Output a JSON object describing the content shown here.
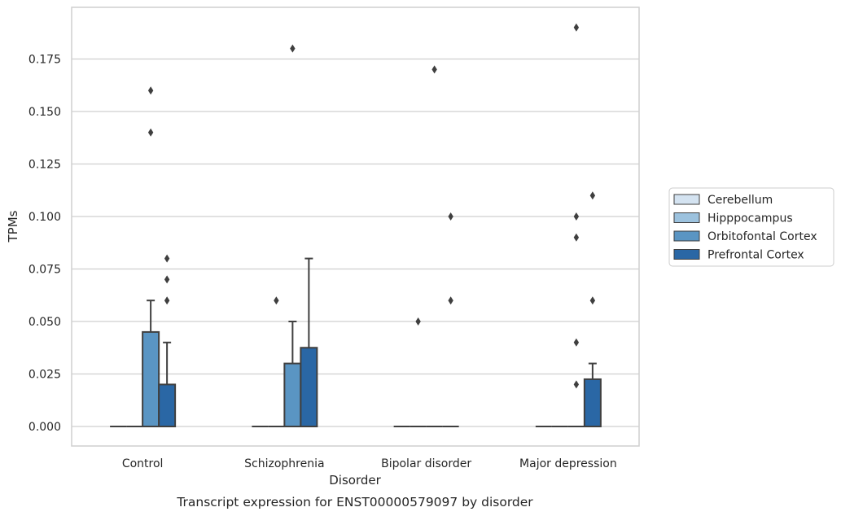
{
  "chart_data": {
    "type": "box",
    "caption": "Transcript expression for ENST00000579097 by disorder",
    "xlabel": "Disorder",
    "ylabel": "TPMs",
    "ylim": [
      -0.009,
      0.199
    ],
    "yticks": [
      "0.000",
      "0.025",
      "0.050",
      "0.075",
      "0.100",
      "0.125",
      "0.150",
      "0.175"
    ],
    "ytick_values": [
      0,
      0.025,
      0.05,
      0.075,
      0.1,
      0.125,
      0.15,
      0.175
    ],
    "categories": [
      "Control",
      "Schizophrenia",
      "Bipolar disorder",
      "Major depression"
    ],
    "grid": "horizontal",
    "legend_position": "right",
    "series": [
      {
        "name": "Cerebellum",
        "color": "#d4e3f1",
        "boxes": [
          {
            "q1": 0,
            "median": 0,
            "q3": 0,
            "whisker_low": 0,
            "whisker_high": 0,
            "outliers": []
          },
          {
            "q1": 0,
            "median": 0,
            "q3": 0,
            "whisker_low": 0,
            "whisker_high": 0,
            "outliers": []
          },
          {
            "q1": 0,
            "median": 0,
            "q3": 0,
            "whisker_low": 0,
            "whisker_high": 0,
            "outliers": []
          },
          {
            "q1": 0,
            "median": 0,
            "q3": 0,
            "whisker_low": 0,
            "whisker_high": 0,
            "outliers": []
          }
        ]
      },
      {
        "name": "Hipppocampus",
        "color": "#9cc2de",
        "boxes": [
          {
            "q1": 0,
            "median": 0,
            "q3": 0,
            "whisker_low": 0,
            "whisker_high": 0,
            "outliers": []
          },
          {
            "q1": 0,
            "median": 0,
            "q3": 0,
            "whisker_low": 0,
            "whisker_high": 0,
            "outliers": [
              0.06
            ]
          },
          {
            "q1": 0,
            "median": 0,
            "q3": 0,
            "whisker_low": 0,
            "whisker_high": 0,
            "outliers": [
              0.05
            ]
          },
          {
            "q1": 0,
            "median": 0,
            "q3": 0,
            "whisker_low": 0,
            "whisker_high": 0,
            "outliers": []
          }
        ]
      },
      {
        "name": "Orbitofontal Cortex",
        "color": "#5a95c3",
        "boxes": [
          {
            "q1": 0,
            "median": 0,
            "q3": 0.045,
            "whisker_low": 0,
            "whisker_high": 0.06,
            "outliers": [
              0.14,
              0.16
            ]
          },
          {
            "q1": 0,
            "median": 0,
            "q3": 0.03,
            "whisker_low": 0,
            "whisker_high": 0.05,
            "outliers": [
              0.18
            ]
          },
          {
            "q1": 0,
            "median": 0,
            "q3": 0,
            "whisker_low": 0,
            "whisker_high": 0,
            "outliers": [
              0.17
            ]
          },
          {
            "q1": 0,
            "median": 0,
            "q3": 0,
            "whisker_low": 0,
            "whisker_high": 0,
            "outliers": [
              0.02,
              0.04,
              0.09,
              0.1,
              0.19
            ]
          }
        ]
      },
      {
        "name": "Prefrontal Cortex",
        "color": "#2a67a5",
        "boxes": [
          {
            "q1": 0,
            "median": 0,
            "q3": 0.02,
            "whisker_low": 0,
            "whisker_high": 0.04,
            "outliers": [
              0.06,
              0.07,
              0.08
            ]
          },
          {
            "q1": 0,
            "median": 0,
            "q3": 0.0375,
            "whisker_low": 0,
            "whisker_high": 0.08,
            "outliers": []
          },
          {
            "q1": 0,
            "median": 0,
            "q3": 0,
            "whisker_low": 0,
            "whisker_high": 0,
            "outliers": [
              0.06,
              0.1
            ]
          },
          {
            "q1": 0,
            "median": 0,
            "q3": 0.0225,
            "whisker_low": 0,
            "whisker_high": 0.03,
            "outliers": [
              0.06,
              0.11
            ]
          }
        ]
      }
    ],
    "colors": {
      "edge": "#3f3f3f",
      "grid": "#cfcfcf",
      "frame": "#cfcfcf",
      "text": "#262626"
    }
  }
}
